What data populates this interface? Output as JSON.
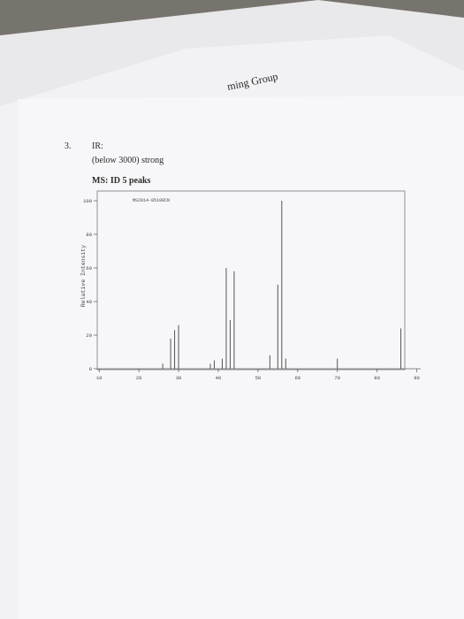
{
  "question_number": "3.",
  "ir_label": "IR:",
  "ir_note": "(below 3000) strong",
  "ms_label": "MS: ID 5 peaks",
  "chart_data": {
    "type": "bar",
    "annotation": "MS2014-05108CN",
    "y_label": "Relative Intensity",
    "x": [
      26,
      28,
      29,
      30,
      38,
      39,
      41,
      42,
      43,
      44,
      53,
      55,
      56,
      57,
      70,
      86
    ],
    "values": [
      3,
      18,
      23,
      26,
      3,
      5,
      6,
      60,
      29,
      58,
      8,
      50,
      100,
      6,
      6,
      24
    ],
    "color": "#555555",
    "xlim": [
      9.5,
      91
    ],
    "xticks": [
      10,
      20,
      30,
      40,
      50,
      60,
      70,
      80,
      90
    ],
    "ylim": [
      0,
      100
    ],
    "yticks": [
      0,
      20,
      40,
      60,
      80,
      100
    ]
  }
}
